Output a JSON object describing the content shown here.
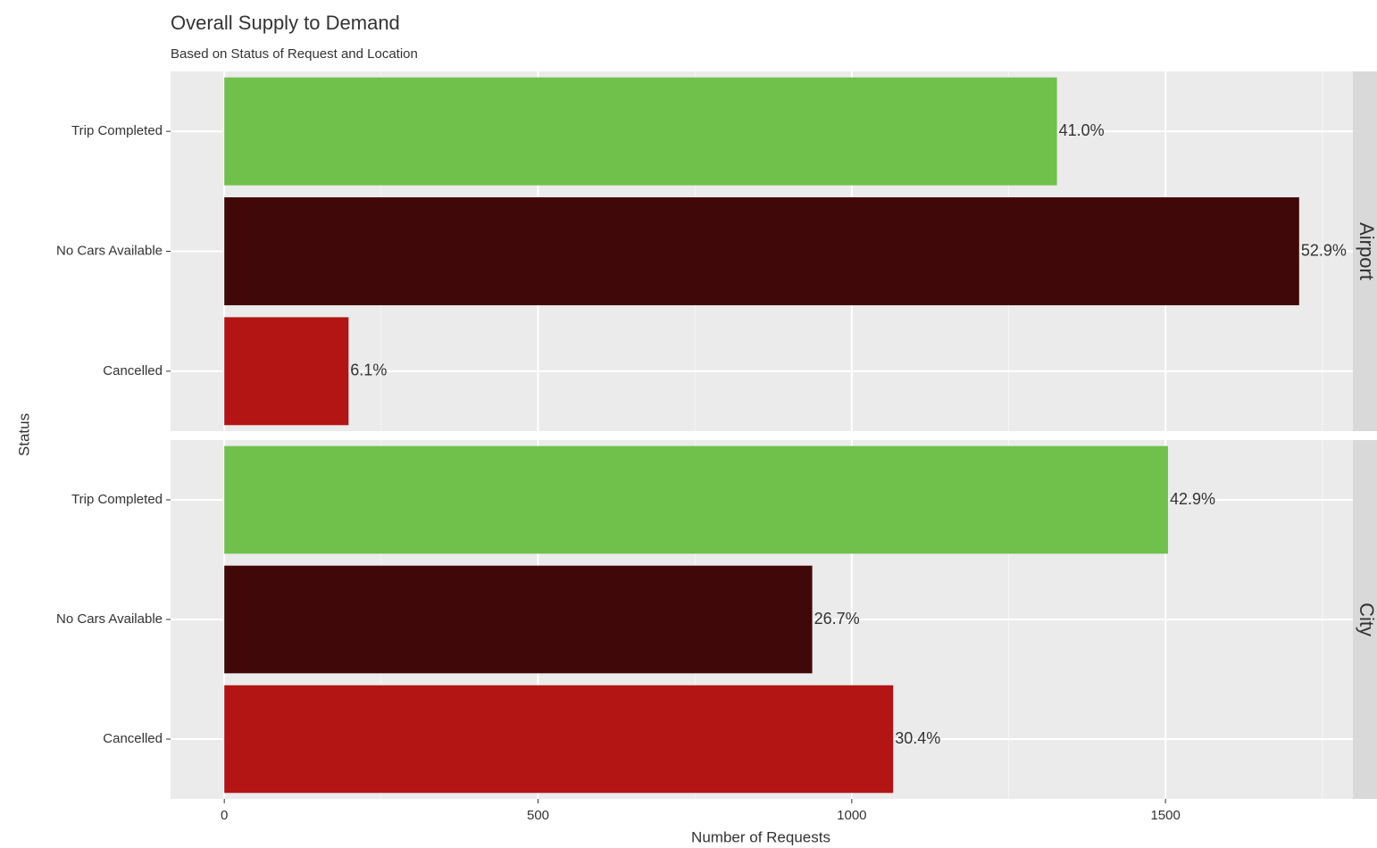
{
  "chart_data": {
    "type": "bar",
    "orientation": "horizontal",
    "title": "Overall Supply to Demand",
    "subtitle": "Based on Status of Request and Location",
    "x_label": "Number of Requests",
    "y_label": "Status",
    "categories": [
      "Trip Completed",
      "No Cars Available",
      "Cancelled"
    ],
    "colors": [
      "#70c04c",
      "#410809",
      "#b31414"
    ],
    "facets": [
      {
        "name": "Airport",
        "values": [
          1327,
          1713,
          198
        ],
        "labels": [
          "41.0%",
          "52.9%",
          "6.1%"
        ]
      },
      {
        "name": "City",
        "values": [
          1504,
          937,
          1066
        ],
        "labels": [
          "42.9%",
          "26.7%",
          "30.4%"
        ]
      }
    ],
    "xlim": [
      -85.65,
      1798.65
    ],
    "xticks": [
      0,
      500,
      1000,
      1500
    ],
    "xminor": [
      250,
      750,
      1250,
      1750
    ],
    "grid": true
  }
}
